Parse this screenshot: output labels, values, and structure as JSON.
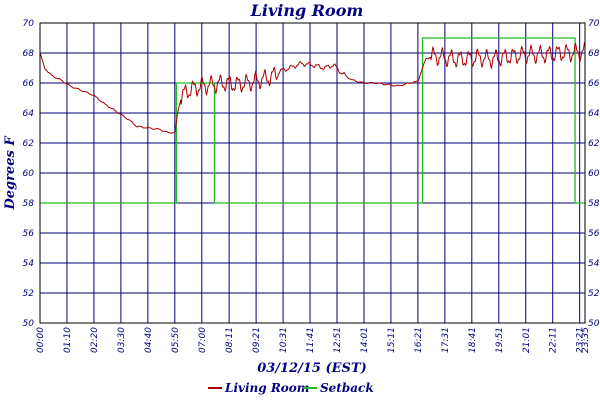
{
  "chart_data": {
    "type": "line",
    "title": "Living Room",
    "xlabel": "03/12/15 (EST)",
    "ylabel": "Degrees F",
    "ylim": [
      50,
      70
    ],
    "yticks": [
      50,
      52,
      54,
      56,
      58,
      60,
      62,
      64,
      66,
      68,
      70
    ],
    "xlim_hours": [
      0,
      23.58
    ],
    "x_ticks": [
      {
        "h": 0.0,
        "label": "00:00"
      },
      {
        "h": 1.167,
        "label": "01:10"
      },
      {
        "h": 2.333,
        "label": "02:20"
      },
      {
        "h": 3.5,
        "label": "03:30"
      },
      {
        "h": 4.667,
        "label": "04:40"
      },
      {
        "h": 5.833,
        "label": "05:50"
      },
      {
        "h": 7.0,
        "label": "07:00"
      },
      {
        "h": 8.183,
        "label": "08:11"
      },
      {
        "h": 9.35,
        "label": "09:21"
      },
      {
        "h": 10.517,
        "label": "10:31"
      },
      {
        "h": 11.683,
        "label": "11:41"
      },
      {
        "h": 12.85,
        "label": "12:51"
      },
      {
        "h": 14.017,
        "label": "14:01"
      },
      {
        "h": 15.183,
        "label": "15:11"
      },
      {
        "h": 16.35,
        "label": "16:21"
      },
      {
        "h": 17.517,
        "label": "17:31"
      },
      {
        "h": 18.683,
        "label": "18:41"
      },
      {
        "h": 19.85,
        "label": "19:51"
      },
      {
        "h": 21.017,
        "label": "21:01"
      },
      {
        "h": 22.183,
        "label": "22:11"
      },
      {
        "h": 23.35,
        "label": "23:21"
      },
      {
        "h": 23.58,
        "label": "23:35"
      }
    ],
    "series": [
      {
        "name": "Living Room",
        "color": "#aa0000",
        "points": [
          [
            0.0,
            68.0
          ],
          [
            0.2,
            67.0
          ],
          [
            0.5,
            66.5
          ],
          [
            0.9,
            66.2
          ],
          [
            1.3,
            65.8
          ],
          [
            1.8,
            65.5
          ],
          [
            2.3,
            65.2
          ],
          [
            2.8,
            64.6
          ],
          [
            3.3,
            64.1
          ],
          [
            3.8,
            63.6
          ],
          [
            4.2,
            63.1
          ],
          [
            4.7,
            63.0
          ],
          [
            5.2,
            62.9
          ],
          [
            5.5,
            62.7
          ],
          [
            5.85,
            62.7
          ],
          [
            5.95,
            64.0
          ],
          [
            6.1,
            65.0
          ],
          [
            6.3,
            65.4
          ],
          [
            6.6,
            65.6
          ],
          [
            7.0,
            65.8
          ],
          [
            7.5,
            65.9
          ],
          [
            8.0,
            66.0
          ],
          [
            8.5,
            65.9
          ],
          [
            9.0,
            66.0
          ],
          [
            9.5,
            66.2
          ],
          [
            10.0,
            66.4
          ],
          [
            10.4,
            66.8
          ],
          [
            10.8,
            67.0
          ],
          [
            11.3,
            67.3
          ],
          [
            11.8,
            67.2
          ],
          [
            12.3,
            67.0
          ],
          [
            12.7,
            67.2
          ],
          [
            13.1,
            66.6
          ],
          [
            13.5,
            66.2
          ],
          [
            14.0,
            66.0
          ],
          [
            14.5,
            66.0
          ],
          [
            15.0,
            65.9
          ],
          [
            15.5,
            65.8
          ],
          [
            16.0,
            66.0
          ],
          [
            16.35,
            66.1
          ],
          [
            16.5,
            66.8
          ],
          [
            16.7,
            67.6
          ],
          [
            17.0,
            67.8
          ],
          [
            17.5,
            67.7
          ],
          [
            18.0,
            67.6
          ],
          [
            18.5,
            67.6
          ],
          [
            19.0,
            67.7
          ],
          [
            19.5,
            67.6
          ],
          [
            20.0,
            67.7
          ],
          [
            20.5,
            67.8
          ],
          [
            21.0,
            67.9
          ],
          [
            21.5,
            67.9
          ],
          [
            22.0,
            67.9
          ],
          [
            22.5,
            68.0
          ],
          [
            23.0,
            68.0
          ],
          [
            23.58,
            68.1
          ]
        ],
        "noise_ranges": [
          [
            6.1,
            10.3,
            0.45
          ],
          [
            10.3,
            13.3,
            0.12
          ],
          [
            16.9,
            23.58,
            0.45
          ]
        ]
      },
      {
        "name": "Setback",
        "color": "#20bb20",
        "points": [
          [
            0.0,
            58
          ],
          [
            5.9,
            58
          ],
          [
            5.9,
            66
          ],
          [
            7.55,
            66
          ],
          [
            7.55,
            58
          ],
          [
            16.55,
            58
          ],
          [
            16.55,
            69
          ],
          [
            23.15,
            69
          ],
          [
            23.15,
            58
          ],
          [
            23.58,
            58
          ]
        ]
      }
    ],
    "legend": [
      "Living Room",
      "Setback"
    ],
    "legend_position": "bottom-center",
    "grid": true
  }
}
